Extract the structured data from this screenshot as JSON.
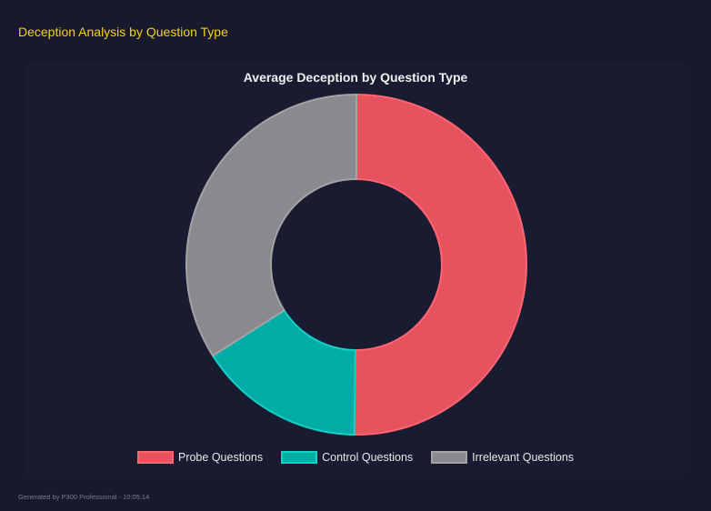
{
  "header": {
    "title": "Deception Analysis by Question Type"
  },
  "footer": {
    "text": "Generated by P300 Professional - 10:05:14"
  },
  "chart_data": {
    "type": "pie",
    "variant": "doughnut",
    "title": "Average Deception by Question Type",
    "legend_position": "bottom",
    "categories": [
      "Probe Questions",
      "Control Questions",
      "Irrelevant Questions"
    ],
    "values": [
      50.2,
      15.8,
      34.0
    ],
    "colors": [
      "#e5535f",
      "#00ada6",
      "#8a8a8e"
    ],
    "border_colors": [
      "#ff6473",
      "#14d1c6",
      "#a3a3a6"
    ]
  }
}
